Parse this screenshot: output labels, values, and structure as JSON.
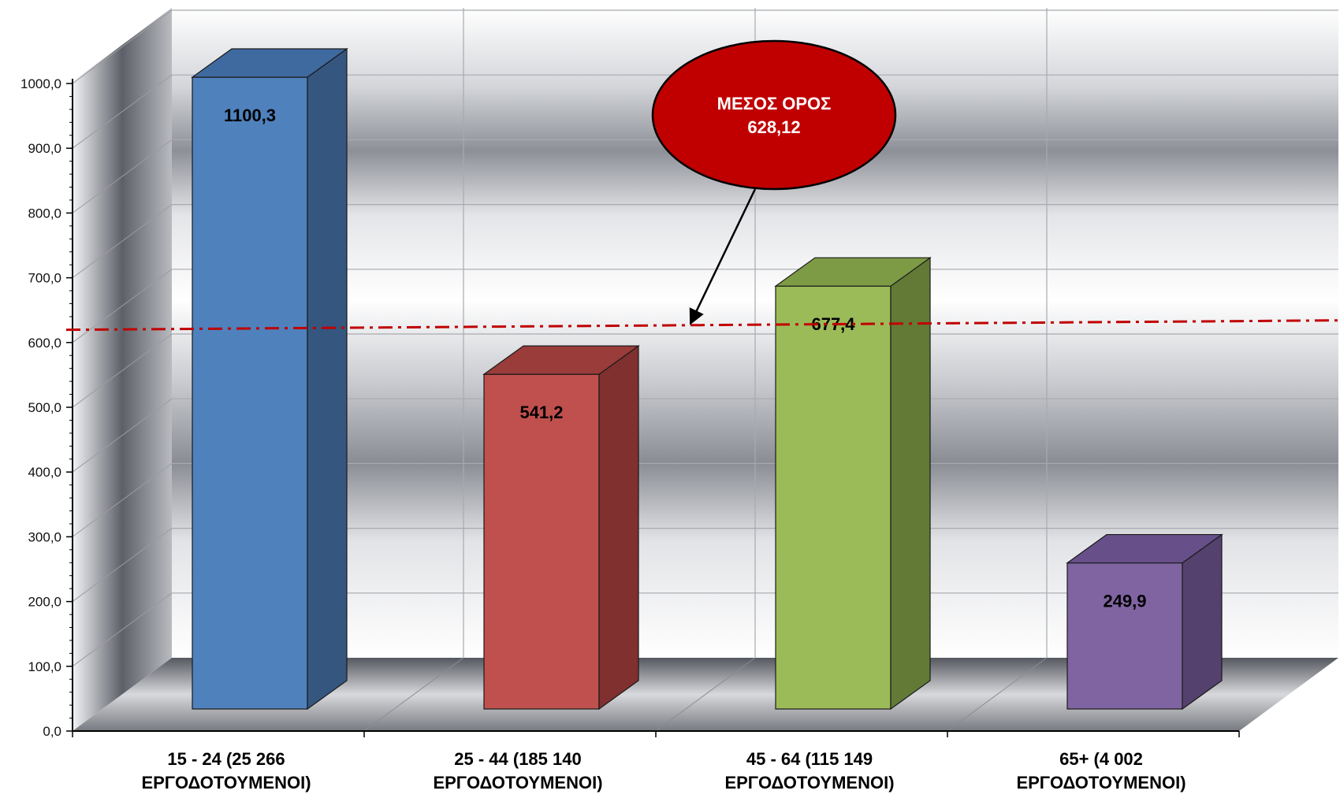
{
  "chart_data": {
    "type": "bar",
    "title": "",
    "xlabel": "",
    "ylabel": "",
    "categories": [
      [
        "15 - 24 (25 266",
        "ΕΡΓΟΔΟΤΟΥΜΕΝΟΙ)"
      ],
      [
        "25 - 44 (185 140",
        "ΕΡΓΟΔΟΤΟΥΜΕΝΟΙ)"
      ],
      [
        "45 - 64 (115 149",
        "ΕΡΓΟΔΟΤΟΥΜΕΝΟΙ)"
      ],
      [
        "65+ (4 002",
        "ΕΡΓΟΔΟΤΟΥΜΕΝΟΙ)"
      ]
    ],
    "values": [
      1100.3,
      541.2,
      677.4,
      249.9
    ],
    "value_labels": [
      "1100,3",
      "541,2",
      "677,4",
      "249,9"
    ],
    "ylim": [
      0,
      1000
    ],
    "ytick_labels": [
      "0,0",
      "100,0",
      "200,0",
      "300,0",
      "400,0",
      "500,0",
      "600,0",
      "700,0",
      "800,0",
      "900,0",
      "1000,0"
    ],
    "grid": true,
    "three_d": true,
    "bar_colors": [
      {
        "front": "#4f81bd",
        "side": "#35567f",
        "top": "#3f6aa0"
      },
      {
        "front": "#c0504d",
        "side": "#7f302f",
        "top": "#9a3c3a"
      },
      {
        "front": "#9bbb59",
        "side": "#627a36",
        "top": "#7d9b45"
      },
      {
        "front": "#8064a2",
        "side": "#54416e",
        "top": "#67508a"
      }
    ],
    "average": {
      "value": 628.12,
      "label_line1": "ΜΕΣΟΣ ΟΡΟΣ",
      "label_line2": "628,12",
      "line_color": "#c00000",
      "callout_color": "#c00000"
    }
  }
}
